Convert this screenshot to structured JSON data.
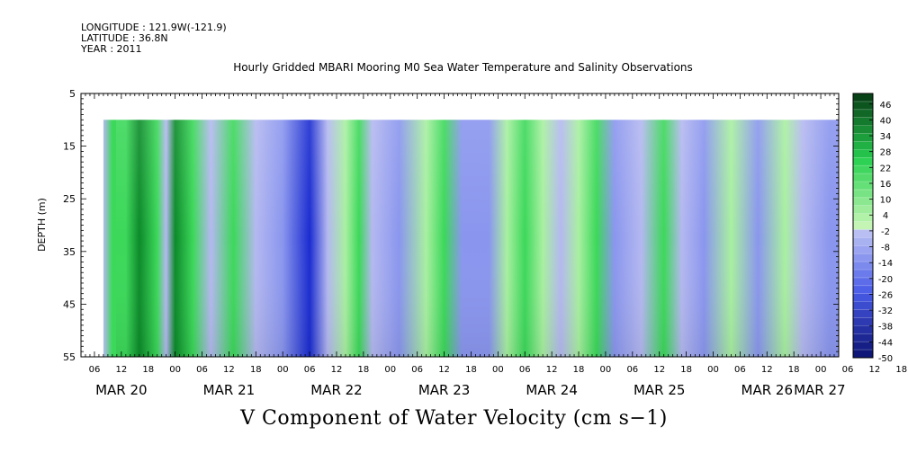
{
  "header": {
    "longitude": "LONGITUDE : 121.9W(-121.9)",
    "latitude": "LATITUDE : 36.8N",
    "year": "YEAR : 2011"
  },
  "chart_data": {
    "type": "heatmap",
    "title": "Hourly Gridded MBARI Mooring M0 Sea Water Temperature and Salinity Observations",
    "subtitle": "V Component of Water Velocity (cm s−1)",
    "ylabel": "DEPTH (m)",
    "ylim": [
      5,
      55
    ],
    "y_ticks": [
      "5",
      "15",
      "25",
      "35",
      "45",
      "55"
    ],
    "data_depth_range": [
      10,
      55
    ],
    "x_hour_ticks": [
      "06",
      "12",
      "18",
      "00",
      "06",
      "12",
      "18",
      "00",
      "06",
      "12",
      "18",
      "00",
      "06",
      "12",
      "18",
      "00",
      "06",
      "12",
      "18",
      "00",
      "06",
      "12",
      "18",
      "00",
      "06",
      "12",
      "18",
      "00",
      "06",
      "12",
      "18",
      "00"
    ],
    "x_day_labels": [
      "MAR 20",
      "MAR 21",
      "MAR 22",
      "MAR 23",
      "MAR 24",
      "MAR 25",
      "MAR 26",
      "MAR 27"
    ],
    "colorbar_labels": [
      "46",
      "40",
      "34",
      "28",
      "22",
      "16",
      "10",
      "4",
      "-2",
      "-8",
      "-14",
      "-20",
      "-26",
      "-32",
      "-38",
      "-44",
      "-50"
    ],
    "colorbar_range": [
      -50,
      50
    ],
    "colors": {
      "positive_light": "#a8f0a0",
      "positive_mid": "#3cd85a",
      "positive_dark": "#0c8a2a",
      "negative_light": "#b4b8f0",
      "negative_mid": "#8a96ee",
      "negative_dark": "#1a2cd0"
    },
    "time_start": "MAR 20 03:00",
    "time_end": "MAR 27 04:00",
    "data_start": "MAR 20 08:00",
    "v_columns_estimate": [
      {
        "time": "MAR 20 08:00",
        "v": -6
      },
      {
        "time": "MAR 20 10:00",
        "v": 14
      },
      {
        "time": "MAR 20 13:00",
        "v": 22
      },
      {
        "time": "MAR 20 16:00",
        "v": 30
      },
      {
        "time": "MAR 20 20:00",
        "v": 16
      },
      {
        "time": "MAR 20 22:00",
        "v": -8
      },
      {
        "time": "MAR 21 00:00",
        "v": 28
      },
      {
        "time": "MAR 21 04:00",
        "v": 20
      },
      {
        "time": "MAR 21 08:00",
        "v": -8
      },
      {
        "time": "MAR 21 13:00",
        "v": 18
      },
      {
        "time": "MAR 21 18:00",
        "v": -10
      },
      {
        "time": "MAR 22 00:00",
        "v": -12
      },
      {
        "time": "MAR 22 06:00",
        "v": -22
      },
      {
        "time": "MAR 22 10:00",
        "v": -10
      },
      {
        "time": "MAR 22 14:00",
        "v": 8
      },
      {
        "time": "MAR 22 17:00",
        "v": 14
      },
      {
        "time": "MAR 22 20:00",
        "v": -6
      },
      {
        "time": "MAR 23 02:00",
        "v": -18
      },
      {
        "time": "MAR 23 08:00",
        "v": 6
      },
      {
        "time": "MAR 23 12:00",
        "v": 12
      },
      {
        "time": "MAR 23 16:00",
        "v": -12
      },
      {
        "time": "MAR 23 22:00",
        "v": -20
      },
      {
        "time": "MAR 24 02:00",
        "v": 10
      },
      {
        "time": "MAR 24 06:00",
        "v": 16
      },
      {
        "time": "MAR 24 10:00",
        "v": 8
      },
      {
        "time": "MAR 24 14:00",
        "v": -8
      },
      {
        "time": "MAR 24 18:00",
        "v": 6
      },
      {
        "time": "MAR 24 22:00",
        "v": 16
      },
      {
        "time": "MAR 25 02:00",
        "v": -14
      },
      {
        "time": "MAR 25 08:00",
        "v": -10
      },
      {
        "time": "MAR 25 13:00",
        "v": 16
      },
      {
        "time": "MAR 25 17:00",
        "v": -6
      },
      {
        "time": "MAR 25 22:00",
        "v": -12
      },
      {
        "time": "MAR 26 04:00",
        "v": 6
      },
      {
        "time": "MAR 26 10:00",
        "v": -18
      },
      {
        "time": "MAR 26 16:00",
        "v": 8
      },
      {
        "time": "MAR 26 20:00",
        "v": -10
      },
      {
        "time": "MAR 27 02:00",
        "v": -14
      }
    ]
  }
}
